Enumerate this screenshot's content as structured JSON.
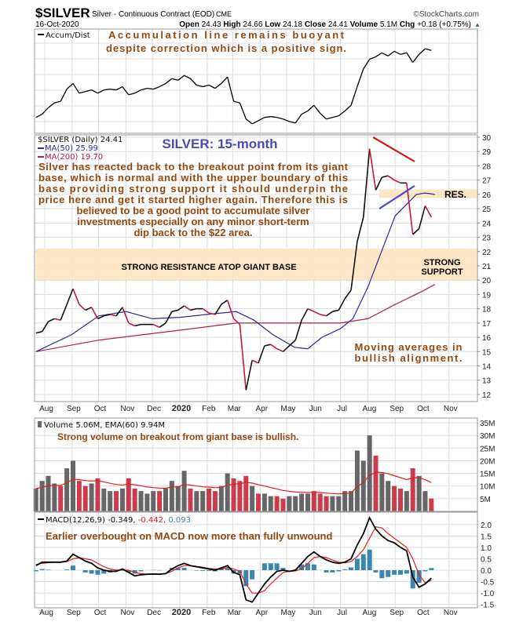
{
  "header": {
    "symbol": "$SILVER",
    "name": "Silver - Continuous Contract (EOD)",
    "exchange": "CME",
    "copyright": "©StockCharts.com",
    "date": "16-Oct-2020",
    "quote": [
      {
        "label": "Open",
        "value": "24.43"
      },
      {
        "label": "High",
        "value": "24.66"
      },
      {
        "label": "Low",
        "value": "24.18"
      },
      {
        "label": "Close",
        "value": "24.41"
      },
      {
        "label": "Volume",
        "value": "5.1M"
      },
      {
        "label": "Chg",
        "value": "+0.18 (+0.75%)"
      }
    ],
    "chg_arrow": "▲"
  },
  "panels": {
    "accum": {
      "legend": "Accum/Dist",
      "annotation": [
        "Accumulation line remains buoyant",
        "despite correction which is a positive sign."
      ]
    },
    "price": {
      "legend_main": "$SILVER (Daily) 24.41",
      "legend_ma50": "MA(50) 25.99",
      "legend_ma200": "MA(200) 19.70",
      "title": "SILVER: 15-month",
      "commentary": [
        "Silver has reacted back to the breakout point from its giant",
        "base, which is normal and with the upper boundary of this",
        "base providing strong support it should underpin the",
        "price here and get it started higher again. Therefore this is",
        "believed to be a good point to accumulate silver",
        "investments especially on any minor short-term",
        "dip back to the $22 area."
      ],
      "resistance_label": "STRONG RESISTANCE ATOP GIANT BASE",
      "res_label": "RES.",
      "support_label": [
        "STRONG",
        "SUPPORT"
      ],
      "ma_note": [
        "Moving averages in",
        "bullish alignment."
      ]
    },
    "volume": {
      "legend": "Volume 5.06M, EMA(60) 9.94M",
      "annotation": "Strong volume on breakout from giant base is bullish."
    },
    "macd": {
      "legend_name": "MACD(12,26,9)",
      "legend_macd": "-0.349,",
      "legend_signal": "-0.442,",
      "legend_hist": "0.093",
      "annotation": "Earlier overbought on MACD now more than fully unwound"
    }
  },
  "colors": {
    "annotation": "#95480f",
    "title": "#4a4ab8",
    "ma50": "#2b2b9a",
    "ma200": "#b0204a",
    "down": "#c8173f",
    "up": "#111111",
    "band": "#fde3c0",
    "macd_hist": "#3a86ad",
    "signal": "#e02020",
    "volume_up": "#666666",
    "volume_down": "#cc3b4b"
  },
  "chart_data": {
    "type": "line",
    "x_ticks": [
      {
        "label": "Aug",
        "date": "2019-08-01"
      },
      {
        "label": "Sep",
        "date": "2019-09-01"
      },
      {
        "label": "Oct",
        "date": "2019-10-01"
      },
      {
        "label": "Nov",
        "date": "2019-11-01"
      },
      {
        "label": "Dec",
        "date": "2019-12-01"
      },
      {
        "label": "2020",
        "date": "2020-01-01"
      },
      {
        "label": "Feb",
        "date": "2020-02-01"
      },
      {
        "label": "Mar",
        "date": "2020-03-01"
      },
      {
        "label": "Apr",
        "date": "2020-04-01"
      },
      {
        "label": "May",
        "date": "2020-05-01"
      },
      {
        "label": "Jun",
        "date": "2020-06-01"
      },
      {
        "label": "Jul",
        "date": "2020-07-01"
      },
      {
        "label": "Aug",
        "date": "2020-08-01"
      },
      {
        "label": "Sep",
        "date": "2020-09-01"
      },
      {
        "label": "Oct",
        "date": "2020-10-01"
      },
      {
        "label": "Nov",
        "date": "2020-11-01"
      }
    ],
    "price_axis": {
      "ylim": [
        11.5,
        30.5
      ],
      "ticks": [
        12,
        13,
        14,
        15,
        16,
        17,
        18,
        19,
        20,
        21,
        22,
        23,
        24,
        25,
        26,
        27,
        28,
        29,
        30
      ]
    },
    "volume_axis": {
      "ticks": [
        "5M",
        "10M",
        "15M",
        "20M",
        "25M",
        "30M",
        "35M"
      ],
      "tick_values": [
        5,
        10,
        15,
        20,
        25,
        30,
        35
      ]
    },
    "macd_axis": {
      "ticks": [
        "2.0",
        "1.5",
        "1.0",
        "0.5",
        "0.0",
        "-0.5",
        "-1.0",
        "-1.5"
      ],
      "tick_values": [
        2,
        1.5,
        1,
        0.5,
        0,
        -0.5,
        -1,
        -1.5
      ]
    },
    "grid": true,
    "dates": [
      "2019-07-22",
      "2019-07-29",
      "2019-08-05",
      "2019-08-12",
      "2019-08-19",
      "2019-08-26",
      "2019-09-02",
      "2019-09-09",
      "2019-09-16",
      "2019-09-23",
      "2019-09-30",
      "2019-10-07",
      "2019-10-14",
      "2019-10-21",
      "2019-10-28",
      "2019-11-04",
      "2019-11-11",
      "2019-11-18",
      "2019-11-25",
      "2019-12-02",
      "2019-12-09",
      "2019-12-16",
      "2019-12-23",
      "2019-12-30",
      "2020-01-06",
      "2020-01-13",
      "2020-01-20",
      "2020-01-27",
      "2020-02-03",
      "2020-02-10",
      "2020-02-17",
      "2020-02-24",
      "2020-03-02",
      "2020-03-09",
      "2020-03-16",
      "2020-03-23",
      "2020-03-30",
      "2020-04-06",
      "2020-04-13",
      "2020-04-20",
      "2020-04-27",
      "2020-05-04",
      "2020-05-11",
      "2020-05-18",
      "2020-05-25",
      "2020-06-01",
      "2020-06-08",
      "2020-06-15",
      "2020-06-22",
      "2020-06-29",
      "2020-07-06",
      "2020-07-13",
      "2020-07-20",
      "2020-07-27",
      "2020-08-03",
      "2020-08-10",
      "2020-08-17",
      "2020-08-24",
      "2020-08-31",
      "2020-09-07",
      "2020-09-14",
      "2020-09-21",
      "2020-09-28",
      "2020-10-05",
      "2020-10-12"
    ],
    "close": [
      16.3,
      16.4,
      17.1,
      17.3,
      17.2,
      18.3,
      19.4,
      18.3,
      17.9,
      18.1,
      17.3,
      17.5,
      17.6,
      17.5,
      18.1,
      17.0,
      16.8,
      16.9,
      16.9,
      16.9,
      16.7,
      17.0,
      17.8,
      17.9,
      18.2,
      17.9,
      18.0,
      18.0,
      17.7,
      17.6,
      18.3,
      18.6,
      17.3,
      16.9,
      12.3,
      14.4,
      14.2,
      15.4,
      15.5,
      15.2,
      15.0,
      15.4,
      15.8,
      17.2,
      18.0,
      17.8,
      17.6,
      17.5,
      17.8,
      17.9,
      18.7,
      19.3,
      22.7,
      24.4,
      29.2,
      26.3,
      27.2,
      27.3,
      27.0,
      26.8,
      26.8,
      23.2,
      23.6,
      25.2,
      24.41
    ],
    "accum_dist_relative": [
      10,
      14,
      22,
      28,
      30,
      45,
      52,
      40,
      42,
      44,
      40,
      44,
      45,
      44,
      48,
      38,
      40,
      44,
      46,
      45,
      48,
      52,
      58,
      56,
      62,
      58,
      50,
      48,
      50,
      46,
      52,
      60,
      30,
      28,
      8,
      2,
      6,
      10,
      11,
      10,
      8,
      5,
      3,
      14,
      18,
      25,
      15,
      8,
      10,
      12,
      18,
      25,
      48,
      70,
      82,
      85,
      90,
      86,
      92,
      88,
      90,
      78,
      88,
      95,
      93
    ],
    "volume_millions": [
      9,
      12,
      14,
      11,
      10,
      17,
      20,
      12,
      10,
      11,
      13,
      9,
      8,
      8,
      9,
      13,
      9,
      8,
      7,
      8,
      8,
      9,
      12,
      10,
      16,
      9,
      8,
      8,
      9,
      8,
      10,
      15,
      13,
      12,
      14,
      10,
      7,
      7,
      6,
      6,
      5,
      6,
      6,
      7,
      7,
      8,
      7,
      6,
      6,
      6,
      8,
      8,
      24,
      20,
      30,
      22,
      15,
      12,
      10,
      9,
      8,
      17,
      14,
      8,
      5.06
    ],
    "macd": [
      0.2,
      0.35,
      0.35,
      0.35,
      0.35,
      0.4,
      0.7,
      0.55,
      0.4,
      0.3,
      0.1,
      0.0,
      -0.05,
      -0.05,
      0.05,
      -0.1,
      -0.25,
      -0.2,
      -0.18,
      -0.17,
      -0.18,
      -0.15,
      0.05,
      0.2,
      0.3,
      0.2,
      0.15,
      0.1,
      0.05,
      0.0,
      0.1,
      0.2,
      -0.1,
      -0.2,
      -1.3,
      -1.4,
      -1.0,
      -0.6,
      -0.3,
      -0.05,
      0.0,
      -0.05,
      0.0,
      0.3,
      0.6,
      0.8,
      0.6,
      0.45,
      0.35,
      0.3,
      0.35,
      0.5,
      1.1,
      1.6,
      2.3,
      1.8,
      1.5,
      1.3,
      1.2,
      1.0,
      0.85,
      -0.3,
      -0.75,
      -0.6,
      -0.349
    ],
    "signal": [
      0.25,
      0.3,
      0.33,
      0.35,
      0.35,
      0.37,
      0.5,
      0.55,
      0.5,
      0.45,
      0.3,
      0.15,
      0.05,
      0.0,
      0.0,
      0.0,
      -0.1,
      -0.15,
      -0.18,
      -0.18,
      -0.17,
      -0.15,
      -0.05,
      0.1,
      0.2,
      0.2,
      0.17,
      0.13,
      0.08,
      0.05,
      0.05,
      0.12,
      0.05,
      -0.05,
      -0.6,
      -1.0,
      -1.0,
      -0.9,
      -0.6,
      -0.35,
      -0.1,
      -0.05,
      -0.03,
      0.05,
      0.3,
      0.55,
      0.6,
      0.55,
      0.45,
      0.35,
      0.32,
      0.38,
      0.6,
      0.9,
      1.4,
      1.9,
      1.85,
      1.6,
      1.4,
      1.2,
      1.0,
      0.5,
      -0.2,
      -0.55,
      -0.442
    ],
    "ma50": [
      [
        "2019-07-22",
        15.0
      ],
      [
        "2019-09-01",
        16.2
      ],
      [
        "2019-10-01",
        17.5
      ],
      [
        "2019-11-01",
        17.8
      ],
      [
        "2019-12-01",
        17.3
      ],
      [
        "2020-01-01",
        17.4
      ],
      [
        "2020-02-01",
        17.6
      ],
      [
        "2020-03-05",
        17.8
      ],
      [
        "2020-03-25",
        17.2
      ],
      [
        "2020-04-15",
        16.2
      ],
      [
        "2020-05-10",
        15.3
      ],
      [
        "2020-05-25",
        15.2
      ],
      [
        "2020-06-10",
        16.0
      ],
      [
        "2020-07-01",
        16.6
      ],
      [
        "2020-07-15",
        17.3
      ],
      [
        "2020-08-01",
        19.5
      ],
      [
        "2020-09-01",
        24.5
      ],
      [
        "2020-09-25",
        26.0
      ],
      [
        "2020-10-05",
        26.1
      ],
      [
        "2020-10-16",
        26.0
      ]
    ],
    "ma200": [
      [
        "2019-07-22",
        15.0
      ],
      [
        "2019-10-01",
        15.8
      ],
      [
        "2020-01-01",
        16.5
      ],
      [
        "2020-03-05",
        17.0
      ],
      [
        "2020-07-01",
        17.0
      ],
      [
        "2020-08-01",
        17.3
      ],
      [
        "2020-09-01",
        18.3
      ],
      [
        "2020-10-01",
        19.2
      ],
      [
        "2020-10-16",
        19.7
      ]
    ],
    "trendlines": [
      {
        "color": "#d01818",
        "from": [
          "2020-08-07",
          30.0
        ],
        "to": [
          "2020-09-23",
          28.3
        ]
      },
      {
        "color": "#4a4ad0",
        "from": [
          "2020-08-14",
          25.0
        ],
        "to": [
          "2020-09-23",
          26.6
        ]
      }
    ],
    "bands": [
      {
        "label": "STRONG RESISTANCE ATOP GIANT BASE / STRONG SUPPORT",
        "from_price": 20.0,
        "to_price": 22.2,
        "start": "2019-07-22"
      },
      {
        "label": "RES.",
        "from_price": 25.75,
        "to_price": 26.35,
        "start": "2020-08-14"
      }
    ]
  }
}
